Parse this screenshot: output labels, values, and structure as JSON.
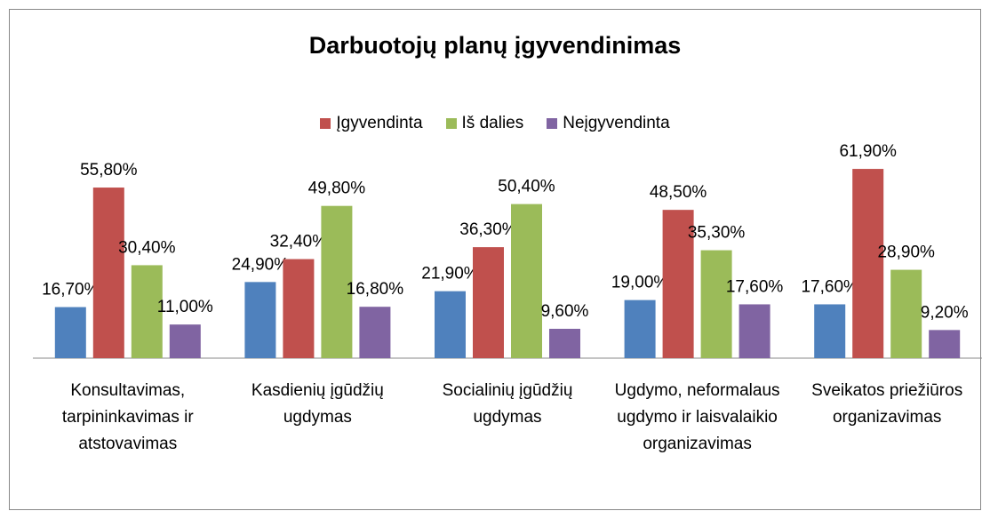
{
  "chart_data": {
    "type": "bar",
    "title": "Darbuotojų planų įgyvendinimas",
    "categories": [
      "Konsultavimas, tarpininkavimas ir atstovavimas",
      "Kasdienių įgūdžių ugdymas",
      "Socialinių įgūdžių ugdymas",
      "Ugdymo, neformalaus ugdymo ir laisvalaikio organizavimas",
      "Sveikatos priežiūros organizavimas"
    ],
    "series": [
      {
        "color": "#4f81bd",
        "values": [
          16.7,
          24.9,
          21.9,
          19.0,
          17.6
        ],
        "value_labels": [
          "16,70%",
          "24,90%",
          "21,90%",
          "19,00%",
          "17,60%"
        ]
      },
      {
        "name": "Įgyvendinta",
        "color": "#c0504d",
        "values": [
          55.8,
          32.4,
          36.3,
          48.5,
          61.9
        ],
        "value_labels": [
          "55,80%",
          "32,40%",
          "36,30%",
          "48,50%",
          "61,90%"
        ]
      },
      {
        "name": "Iš dalies",
        "color": "#9bbb59",
        "values": [
          30.4,
          49.8,
          50.4,
          35.3,
          28.9
        ],
        "value_labels": [
          "30,40%",
          "49,80%",
          "50,40%",
          "35,30%",
          "28,90%"
        ]
      },
      {
        "name": "Neįgyvendinta",
        "color": "#8064a2",
        "values": [
          11.0,
          16.8,
          9.6,
          17.6,
          9.2
        ],
        "value_labels": [
          "11,00%",
          "16,80%",
          "9,60%",
          "17,60%",
          "9,20%"
        ]
      }
    ],
    "legend": "top"
  }
}
